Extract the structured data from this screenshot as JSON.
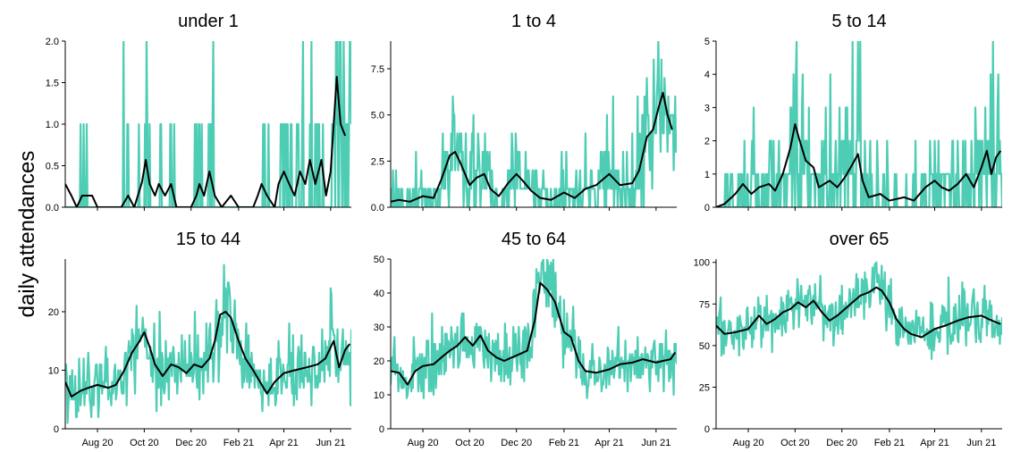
{
  "chart_data": {
    "type": "line",
    "ylabel": "daily attendances",
    "x_range": [
      "2020-06-20",
      "2021-06-28"
    ],
    "x_ticks": [
      {
        "date": "2020-08-01",
        "label": "Aug 20"
      },
      {
        "date": "2020-10-01",
        "label": "Oct 20"
      },
      {
        "date": "2020-12-01",
        "label": "Dec 20"
      },
      {
        "date": "2021-02-01",
        "label": "Feb 21"
      },
      {
        "date": "2021-04-01",
        "label": "Apr 21"
      },
      {
        "date": "2021-06-01",
        "label": "Jun 21"
      }
    ],
    "colors": {
      "daily": "#4ecdb4",
      "rolling_mean": "#000000"
    },
    "series_description": [
      "daily values",
      "rolling mean"
    ],
    "panels": [
      {
        "title": "under 1",
        "ylim": [
          0,
          2.0
        ],
        "yticks": [
          0.0,
          0.5,
          1.0,
          1.5,
          2.0
        ],
        "ytick_labels": [
          "0.0",
          "0.5",
          "1.0",
          "1.5",
          "2.0"
        ],
        "show_x_labels": false,
        "rolling_mean": [
          [
            "2020-06-20",
            0.28
          ],
          [
            "2020-06-28",
            0.14
          ],
          [
            "2020-07-05",
            0.0
          ],
          [
            "2020-07-12",
            0.14
          ],
          [
            "2020-07-25",
            0.14
          ],
          [
            "2020-08-01",
            0.0
          ],
          [
            "2020-09-01",
            0.0
          ],
          [
            "2020-09-10",
            0.14
          ],
          [
            "2020-09-18",
            0.0
          ],
          [
            "2020-09-28",
            0.3
          ],
          [
            "2020-10-03",
            0.57
          ],
          [
            "2020-10-08",
            0.28
          ],
          [
            "2020-10-15",
            0.14
          ],
          [
            "2020-10-20",
            0.28
          ],
          [
            "2020-10-28",
            0.14
          ],
          [
            "2020-11-05",
            0.28
          ],
          [
            "2020-11-12",
            0.0
          ],
          [
            "2020-12-01",
            0.0
          ],
          [
            "2020-12-08",
            0.14
          ],
          [
            "2020-12-12",
            0.28
          ],
          [
            "2020-12-18",
            0.14
          ],
          [
            "2020-12-25",
            0.43
          ],
          [
            "2021-01-01",
            0.14
          ],
          [
            "2021-01-10",
            0.0
          ],
          [
            "2021-01-22",
            0.14
          ],
          [
            "2021-02-01",
            0.0
          ],
          [
            "2021-02-20",
            0.0
          ],
          [
            "2021-02-26",
            0.14
          ],
          [
            "2021-03-03",
            0.28
          ],
          [
            "2021-03-10",
            0.14
          ],
          [
            "2021-03-20",
            0.0
          ],
          [
            "2021-03-25",
            0.28
          ],
          [
            "2021-04-01",
            0.43
          ],
          [
            "2021-04-08",
            0.28
          ],
          [
            "2021-04-15",
            0.14
          ],
          [
            "2021-04-22",
            0.43
          ],
          [
            "2021-04-29",
            0.28
          ],
          [
            "2021-05-05",
            0.57
          ],
          [
            "2021-05-12",
            0.28
          ],
          [
            "2021-05-20",
            0.57
          ],
          [
            "2021-05-26",
            0.14
          ],
          [
            "2021-06-01",
            0.43
          ],
          [
            "2021-06-05",
            1.0
          ],
          [
            "2021-06-09",
            1.57
          ],
          [
            "2021-06-14",
            1.0
          ],
          [
            "2021-06-20",
            0.86
          ]
        ]
      },
      {
        "title": "1 to 4",
        "ylim": [
          0,
          9.0
        ],
        "yticks": [
          0.0,
          2.5,
          5.0,
          7.5
        ],
        "ytick_labels": [
          "0.0",
          "2.5",
          "5.0",
          "7.5"
        ],
        "show_x_labels": false,
        "rolling_mean": [
          [
            "2020-06-20",
            0.3
          ],
          [
            "2020-07-01",
            0.4
          ],
          [
            "2020-07-15",
            0.3
          ],
          [
            "2020-08-01",
            0.6
          ],
          [
            "2020-08-15",
            0.5
          ],
          [
            "2020-08-25",
            1.5
          ],
          [
            "2020-09-05",
            2.8
          ],
          [
            "2020-09-12",
            3.0
          ],
          [
            "2020-09-20",
            2.3
          ],
          [
            "2020-10-01",
            1.2
          ],
          [
            "2020-10-10",
            1.6
          ],
          [
            "2020-10-20",
            1.8
          ],
          [
            "2020-10-28",
            1.0
          ],
          [
            "2020-11-08",
            0.6
          ],
          [
            "2020-11-20",
            1.3
          ],
          [
            "2020-12-01",
            1.8
          ],
          [
            "2020-12-10",
            1.4
          ],
          [
            "2020-12-20",
            0.9
          ],
          [
            "2021-01-01",
            0.5
          ],
          [
            "2021-01-15",
            0.4
          ],
          [
            "2021-02-01",
            0.8
          ],
          [
            "2021-02-15",
            0.5
          ],
          [
            "2021-03-01",
            1.0
          ],
          [
            "2021-03-15",
            1.2
          ],
          [
            "2021-04-01",
            1.8
          ],
          [
            "2021-04-15",
            1.2
          ],
          [
            "2021-05-01",
            1.3
          ],
          [
            "2021-05-10",
            2.0
          ],
          [
            "2021-05-20",
            3.8
          ],
          [
            "2021-05-28",
            4.2
          ],
          [
            "2021-06-05",
            5.5
          ],
          [
            "2021-06-10",
            6.2
          ],
          [
            "2021-06-16",
            5.0
          ],
          [
            "2021-06-22",
            4.2
          ]
        ]
      },
      {
        "title": "5 to 14",
        "ylim": [
          0,
          5.0
        ],
        "yticks": [
          0,
          1,
          2,
          3,
          4,
          5
        ],
        "ytick_labels": [
          "0",
          "1",
          "2",
          "3",
          "4",
          "5"
        ],
        "show_x_labels": false,
        "rolling_mean": [
          [
            "2020-06-20",
            0.0
          ],
          [
            "2020-07-01",
            0.1
          ],
          [
            "2020-07-15",
            0.4
          ],
          [
            "2020-07-25",
            0.7
          ],
          [
            "2020-08-05",
            0.4
          ],
          [
            "2020-08-15",
            0.6
          ],
          [
            "2020-08-28",
            0.7
          ],
          [
            "2020-09-05",
            0.5
          ],
          [
            "2020-09-15",
            1.0
          ],
          [
            "2020-09-25",
            1.8
          ],
          [
            "2020-10-01",
            2.5
          ],
          [
            "2020-10-07",
            2.0
          ],
          [
            "2020-10-15",
            1.4
          ],
          [
            "2020-10-25",
            1.2
          ],
          [
            "2020-11-01",
            0.6
          ],
          [
            "2020-11-15",
            0.8
          ],
          [
            "2020-11-25",
            0.6
          ],
          [
            "2020-12-05",
            0.9
          ],
          [
            "2020-12-15",
            1.3
          ],
          [
            "2020-12-22",
            1.6
          ],
          [
            "2020-12-28",
            0.8
          ],
          [
            "2021-01-05",
            0.3
          ],
          [
            "2021-01-20",
            0.4
          ],
          [
            "2021-02-01",
            0.2
          ],
          [
            "2021-02-20",
            0.3
          ],
          [
            "2021-03-05",
            0.2
          ],
          [
            "2021-03-20",
            0.6
          ],
          [
            "2021-04-01",
            0.8
          ],
          [
            "2021-04-10",
            0.6
          ],
          [
            "2021-04-20",
            0.5
          ],
          [
            "2021-05-01",
            0.7
          ],
          [
            "2021-05-12",
            1.0
          ],
          [
            "2021-05-22",
            0.6
          ],
          [
            "2021-06-01",
            1.2
          ],
          [
            "2021-06-08",
            1.7
          ],
          [
            "2021-06-14",
            1.0
          ],
          [
            "2021-06-20",
            1.5
          ],
          [
            "2021-06-26",
            1.7
          ]
        ]
      },
      {
        "title": "15 to 44",
        "ylim": [
          0,
          29.0
        ],
        "yticks": [
          0,
          10,
          20
        ],
        "ytick_labels": [
          "0",
          "10",
          "20"
        ],
        "show_x_labels": true,
        "rolling_mean": [
          [
            "2020-06-20",
            8.0
          ],
          [
            "2020-06-28",
            5.5
          ],
          [
            "2020-07-10",
            6.5
          ],
          [
            "2020-07-20",
            7.0
          ],
          [
            "2020-08-01",
            7.5
          ],
          [
            "2020-08-15",
            7.0
          ],
          [
            "2020-08-25",
            7.5
          ],
          [
            "2020-09-05",
            10.0
          ],
          [
            "2020-09-15",
            13.0
          ],
          [
            "2020-09-25",
            15.0
          ],
          [
            "2020-10-01",
            16.5
          ],
          [
            "2020-10-08",
            14.0
          ],
          [
            "2020-10-15",
            11.0
          ],
          [
            "2020-10-25",
            9.0
          ],
          [
            "2020-11-05",
            11.0
          ],
          [
            "2020-11-15",
            10.5
          ],
          [
            "2020-11-25",
            9.5
          ],
          [
            "2020-12-05",
            11.0
          ],
          [
            "2020-12-15",
            10.5
          ],
          [
            "2020-12-25",
            12.0
          ],
          [
            "2021-01-01",
            15.0
          ],
          [
            "2021-01-08",
            19.5
          ],
          [
            "2021-01-15",
            20.0
          ],
          [
            "2021-01-22",
            19.0
          ],
          [
            "2021-02-01",
            15.0
          ],
          [
            "2021-02-10",
            12.0
          ],
          [
            "2021-02-20",
            10.0
          ],
          [
            "2021-03-01",
            8.0
          ],
          [
            "2021-03-10",
            6.0
          ],
          [
            "2021-03-20",
            8.0
          ],
          [
            "2021-04-01",
            9.5
          ],
          [
            "2021-04-15",
            10.0
          ],
          [
            "2021-05-01",
            10.5
          ],
          [
            "2021-05-15",
            11.0
          ],
          [
            "2021-05-25",
            12.0
          ],
          [
            "2021-06-05",
            15.0
          ],
          [
            "2021-06-12",
            10.5
          ],
          [
            "2021-06-20",
            13.5
          ],
          [
            "2021-06-26",
            14.5
          ]
        ]
      },
      {
        "title": "45 to 64",
        "ylim": [
          0,
          50.0
        ],
        "yticks": [
          0,
          10,
          20,
          30,
          40,
          50
        ],
        "ytick_labels": [
          "0",
          "10",
          "20",
          "30",
          "40",
          "50"
        ],
        "show_x_labels": true,
        "rolling_mean": [
          [
            "2020-06-20",
            17.0
          ],
          [
            "2020-07-01",
            16.5
          ],
          [
            "2020-07-12",
            13.0
          ],
          [
            "2020-07-22",
            17.0
          ],
          [
            "2020-08-01",
            18.5
          ],
          [
            "2020-08-15",
            19.0
          ],
          [
            "2020-08-25",
            21.0
          ],
          [
            "2020-09-05",
            23.0
          ],
          [
            "2020-09-15",
            24.5
          ],
          [
            "2020-09-25",
            27.0
          ],
          [
            "2020-10-05",
            24.5
          ],
          [
            "2020-10-15",
            27.5
          ],
          [
            "2020-10-25",
            23.0
          ],
          [
            "2020-11-05",
            21.0
          ],
          [
            "2020-11-15",
            20.0
          ],
          [
            "2020-11-25",
            21.0
          ],
          [
            "2020-12-05",
            22.0
          ],
          [
            "2020-12-15",
            23.0
          ],
          [
            "2020-12-25",
            32.0
          ],
          [
            "2021-01-01",
            43.0
          ],
          [
            "2021-01-10",
            41.0
          ],
          [
            "2021-01-20",
            37.5
          ],
          [
            "2021-02-01",
            28.5
          ],
          [
            "2021-02-10",
            27.0
          ],
          [
            "2021-02-20",
            20.0
          ],
          [
            "2021-03-01",
            17.0
          ],
          [
            "2021-03-15",
            16.5
          ],
          [
            "2021-04-01",
            17.5
          ],
          [
            "2021-04-15",
            19.0
          ],
          [
            "2021-05-01",
            19.5
          ],
          [
            "2021-05-15",
            20.5
          ],
          [
            "2021-06-01",
            19.5
          ],
          [
            "2021-06-10",
            20.0
          ],
          [
            "2021-06-20",
            20.5
          ],
          [
            "2021-06-26",
            22.5
          ]
        ]
      },
      {
        "title": "over 65",
        "ylim": [
          0,
          102.0
        ],
        "yticks": [
          0,
          25,
          50,
          75,
          100
        ],
        "ytick_labels": [
          "0",
          "25",
          "50",
          "75",
          "100"
        ],
        "show_x_labels": true,
        "rolling_mean": [
          [
            "2020-06-20",
            62.0
          ],
          [
            "2020-07-01",
            57.0
          ],
          [
            "2020-07-15",
            58.0
          ],
          [
            "2020-08-01",
            60.0
          ],
          [
            "2020-08-15",
            68.0
          ],
          [
            "2020-08-25",
            63.0
          ],
          [
            "2020-09-05",
            66.0
          ],
          [
            "2020-09-15",
            70.0
          ],
          [
            "2020-09-25",
            72.0
          ],
          [
            "2020-10-05",
            76.0
          ],
          [
            "2020-10-15",
            73.0
          ],
          [
            "2020-10-25",
            77.0
          ],
          [
            "2020-11-05",
            70.0
          ],
          [
            "2020-11-15",
            65.0
          ],
          [
            "2020-11-25",
            68.0
          ],
          [
            "2020-12-05",
            72.0
          ],
          [
            "2020-12-15",
            76.0
          ],
          [
            "2020-12-25",
            80.0
          ],
          [
            "2021-01-05",
            82.0
          ],
          [
            "2021-01-15",
            85.0
          ],
          [
            "2021-01-22",
            83.0
          ],
          [
            "2021-02-01",
            76.0
          ],
          [
            "2021-02-10",
            66.0
          ],
          [
            "2021-02-20",
            60.0
          ],
          [
            "2021-03-01",
            57.0
          ],
          [
            "2021-03-15",
            55.0
          ],
          [
            "2021-04-01",
            60.0
          ],
          [
            "2021-04-15",
            62.0
          ],
          [
            "2021-05-01",
            65.0
          ],
          [
            "2021-05-15",
            67.0
          ],
          [
            "2021-06-01",
            68.0
          ],
          [
            "2021-06-10",
            66.0
          ],
          [
            "2021-06-20",
            64.0
          ],
          [
            "2021-06-26",
            63.0
          ]
        ]
      }
    ]
  }
}
